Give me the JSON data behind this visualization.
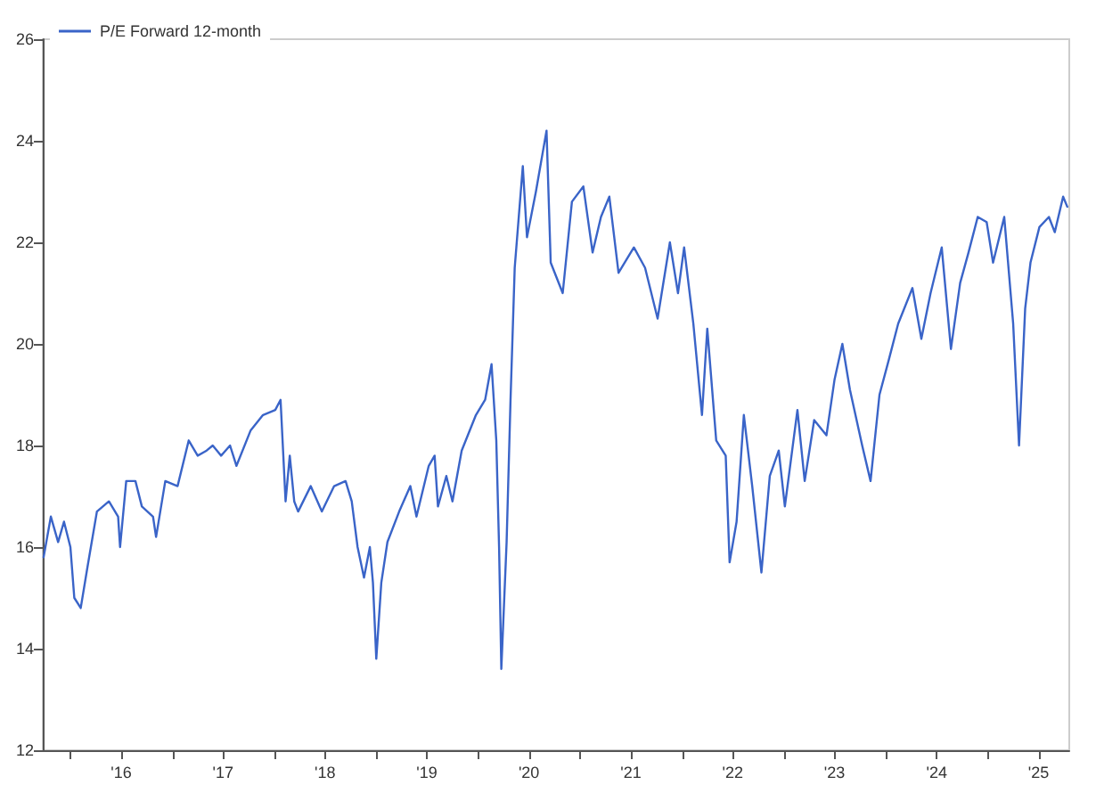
{
  "chart_data": {
    "type": "line",
    "legend": "top left",
    "grid": false,
    "marker": "none",
    "line_style": "solid",
    "ylim": [
      12,
      26
    ],
    "yticks": [
      12,
      14,
      16,
      18,
      20,
      22,
      24,
      26
    ],
    "xlim": [
      "2015-09-24",
      "2025-10-19"
    ],
    "xticks": [
      {
        "value": "2016-01-01",
        "label": null
      },
      {
        "value": "2016-07-01",
        "label": "'16"
      },
      {
        "value": "2017-01-01",
        "label": null
      },
      {
        "value": "2017-07-01",
        "label": "'17"
      },
      {
        "value": "2018-01-01",
        "label": null
      },
      {
        "value": "2018-07-01",
        "label": "'18"
      },
      {
        "value": "2019-01-01",
        "label": null
      },
      {
        "value": "2019-07-01",
        "label": "'19"
      },
      {
        "value": "2020-01-01",
        "label": null
      },
      {
        "value": "2020-07-01",
        "label": "'20"
      },
      {
        "value": "2021-01-01",
        "label": null
      },
      {
        "value": "2021-07-01",
        "label": "'21"
      },
      {
        "value": "2022-01-01",
        "label": null
      },
      {
        "value": "2022-07-01",
        "label": "'22"
      },
      {
        "value": "2023-01-01",
        "label": null
      },
      {
        "value": "2023-07-01",
        "label": "'23"
      },
      {
        "value": "2024-01-01",
        "label": null
      },
      {
        "value": "2024-07-01",
        "label": "'24"
      },
      {
        "value": "2025-01-01",
        "label": null
      },
      {
        "value": "2025-07-01",
        "label": "'25"
      }
    ],
    "series": [
      {
        "name": "P/E Forward 12-month",
        "color": "#3a64c8",
        "x": [
          "2015-09-27",
          "2015-10-23",
          "2015-11-18",
          "2015-12-09",
          "2016-01-01",
          "2016-01-15",
          "2016-02-07",
          "2016-03-02",
          "2016-04-05",
          "2016-05-18",
          "2016-06-20",
          "2016-06-27",
          "2016-07-19",
          "2016-08-21",
          "2016-09-13",
          "2016-10-23",
          "2016-11-03",
          "2016-12-06",
          "2017-01-19",
          "2017-02-28",
          "2017-04-01",
          "2017-05-03",
          "2017-05-25",
          "2017-06-24",
          "2017-07-26",
          "2017-08-18",
          "2017-10-08",
          "2017-11-21",
          "2018-01-04",
          "2018-01-23",
          "2018-02-10",
          "2018-02-25",
          "2018-03-13",
          "2018-03-27",
          "2018-05-11",
          "2018-06-20",
          "2018-08-03",
          "2018-09-13",
          "2018-10-05",
          "2018-10-26",
          "2018-11-18",
          "2018-12-09",
          "2018-12-20",
          "2019-01-01",
          "2019-01-19",
          "2019-02-10",
          "2019-03-24",
          "2019-05-03",
          "2019-05-25",
          "2019-07-08",
          "2019-07-29",
          "2019-08-10",
          "2019-09-09",
          "2019-10-01",
          "2019-11-03",
          "2019-12-24",
          "2020-01-26",
          "2020-02-18",
          "2020-03-06",
          "2020-03-16",
          "2020-03-24",
          "2020-04-12",
          "2020-04-26",
          "2020-05-11",
          "2020-06-09",
          "2020-06-24",
          "2020-07-26",
          "2020-09-02",
          "2020-09-17",
          "2020-10-30",
          "2020-12-02",
          "2021-01-12",
          "2021-02-14",
          "2021-03-16",
          "2021-04-15",
          "2021-05-18",
          "2021-07-12",
          "2021-08-21",
          "2021-10-05",
          "2021-11-18",
          "2021-12-17",
          "2022-01-08",
          "2022-02-10",
          "2022-03-13",
          "2022-04-01",
          "2022-05-03",
          "2022-06-06",
          "2022-06-20",
          "2022-07-15",
          "2022-08-10",
          "2022-09-09",
          "2022-10-12",
          "2022-11-11",
          "2022-12-13",
          "2023-01-04",
          "2023-02-18",
          "2023-03-16",
          "2023-04-19",
          "2023-06-02",
          "2023-07-01",
          "2023-07-29",
          "2023-08-25",
          "2023-10-08",
          "2023-11-07",
          "2023-12-09",
          "2024-01-12",
          "2024-02-14",
          "2024-04-05",
          "2024-05-07",
          "2024-06-09",
          "2024-07-19",
          "2024-08-21",
          "2024-09-23",
          "2024-10-23",
          "2024-11-25",
          "2024-12-27",
          "2025-01-19",
          "2025-02-28",
          "2025-04-01",
          "2025-04-22",
          "2025-05-14",
          "2025-06-02",
          "2025-07-04",
          "2025-08-07",
          "2025-08-28",
          "2025-09-27",
          "2025-10-12"
        ],
        "values": [
          15.8,
          16.6,
          16.1,
          16.5,
          16.0,
          15.0,
          14.8,
          15.6,
          16.7,
          16.9,
          16.6,
          16.0,
          17.3,
          17.3,
          16.8,
          16.6,
          16.2,
          17.3,
          17.2,
          18.1,
          17.8,
          17.9,
          18.0,
          17.8,
          18.0,
          17.6,
          18.3,
          18.6,
          18.7,
          18.9,
          16.9,
          17.8,
          16.9,
          16.7,
          17.2,
          16.7,
          17.2,
          17.3,
          16.9,
          16.0,
          15.4,
          16.0,
          15.3,
          13.8,
          15.3,
          16.1,
          16.7,
          17.2,
          16.6,
          17.6,
          17.8,
          16.8,
          17.4,
          16.9,
          17.9,
          18.6,
          18.9,
          19.6,
          18.1,
          16.0,
          13.6,
          16.1,
          18.9,
          21.5,
          23.5,
          22.1,
          23.0,
          24.2,
          21.6,
          21.0,
          22.8,
          23.1,
          21.8,
          22.5,
          22.9,
          21.4,
          21.9,
          21.5,
          20.5,
          22.0,
          21.0,
          21.9,
          20.4,
          18.6,
          20.3,
          18.1,
          17.8,
          15.7,
          16.5,
          18.6,
          17.2,
          15.5,
          17.4,
          17.9,
          16.8,
          18.7,
          17.3,
          18.5,
          18.2,
          19.3,
          20.0,
          19.1,
          18.0,
          17.3,
          19.0,
          19.7,
          20.4,
          21.1,
          20.1,
          21.0,
          21.9,
          19.9,
          21.2,
          21.8,
          22.5,
          22.4,
          21.6,
          22.5,
          20.4,
          18.0,
          20.7,
          21.6,
          22.3,
          22.5,
          22.2,
          22.9,
          22.7
        ]
      }
    ]
  }
}
